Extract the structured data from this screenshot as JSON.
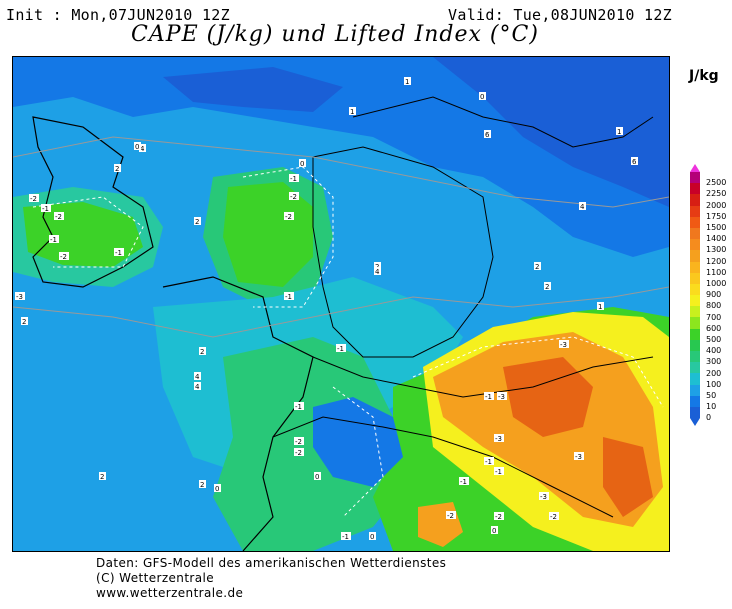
{
  "header": {
    "init": "Init : Mon,07JUN2010 12Z",
    "valid": "Valid: Tue,08JUN2010 12Z",
    "title": "CAPE (J/kg) und Lifted Index (°C)"
  },
  "legend": {
    "unit": "J/kg",
    "levels": [
      "2500",
      "2250",
      "2000",
      "1750",
      "1500",
      "1400",
      "1300",
      "1200",
      "1100",
      "1000",
      "900",
      "800",
      "700",
      "600",
      "500",
      "400",
      "300",
      "200",
      "100",
      "50",
      "10",
      "0"
    ],
    "colors": [
      "#b40078",
      "#c80028",
      "#d71e14",
      "#e63c14",
      "#f05a14",
      "#f0781e",
      "#f58c1e",
      "#f5a01e",
      "#fab41e",
      "#fac81e",
      "#fadc1e",
      "#f5f01e",
      "#c8f01e",
      "#8ce61e",
      "#3cd228",
      "#28c850",
      "#28c878",
      "#28c8a0",
      "#1ebed2",
      "#1ea0e6",
      "#1478e6",
      "#1a5fd6"
    ]
  },
  "map": {
    "colors": {
      "deep_blue": "#1a5fd6",
      "blue": "#1478e6",
      "light_blue": "#1ea0e6",
      "cyan": "#1ebed2",
      "teal": "#28c8a0",
      "green": "#28c878",
      "bright_green": "#3cd228",
      "yellow": "#f5f01e",
      "orange": "#f5a01e",
      "dark_orange": "#e66414"
    },
    "lifted_index_labels": [
      "4",
      "2",
      "2",
      "-2",
      "-1",
      "-2",
      "-2",
      "-1",
      "-1",
      "0",
      "-1",
      "-2",
      "-2",
      "-1",
      "-1",
      "2",
      "2",
      "1",
      "1",
      "0",
      "4",
      "2",
      "1",
      "6",
      "6",
      "4",
      "2",
      "2",
      "0",
      "-1",
      "-2",
      "-2",
      "0",
      "-3",
      "-3",
      "-3",
      "-3",
      "-3",
      "-1",
      "-1",
      "-2",
      "0",
      "0",
      "-1",
      "-2",
      "-1",
      "-1",
      "-2",
      "0",
      "-3",
      "2",
      "4",
      "4",
      "2",
      "1"
    ]
  },
  "footer": {
    "line1": "Daten: GFS-Modell des amerikanischen Wetterdienstes",
    "line2": "(C) Wetterzentrale",
    "line3": "www.wetterzentrale.de"
  }
}
